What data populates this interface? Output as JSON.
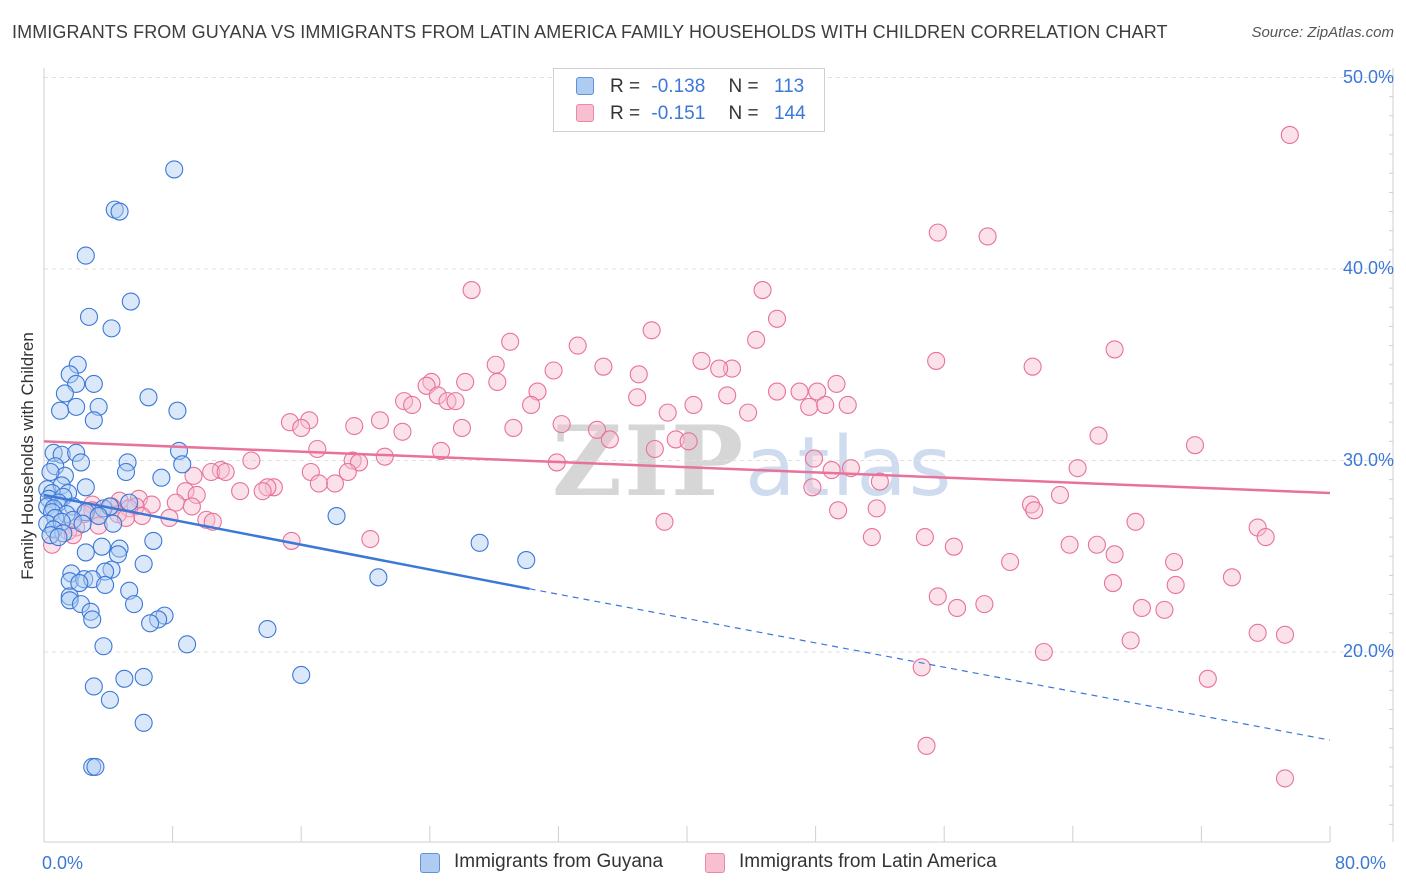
{
  "title": "IMMIGRANTS FROM GUYANA VS IMMIGRANTS FROM LATIN AMERICA FAMILY HOUSEHOLDS WITH CHILDREN CORRELATION CHART",
  "source": "Source: ZipAtlas.com",
  "watermark": {
    "zip": "ZIP",
    "atlas": "atlas"
  },
  "legend": {
    "series": [
      {
        "r_label": "R =",
        "r_value": "-0.138",
        "n_label": "N =",
        "n_value": "113",
        "swatch_fill": "#aecbf2",
        "swatch_stroke": "#5e93d8"
      },
      {
        "r_label": "R =",
        "r_value": "-0.151",
        "n_label": "N =",
        "n_value": "144",
        "swatch_fill": "#f7bfd0",
        "swatch_stroke": "#e889a8"
      }
    ]
  },
  "bottom_legend": [
    "Immigrants from Guyana",
    "Immigrants from Latin America"
  ],
  "x_axis": {
    "min_label": "0.0%",
    "max_label": "80.0%"
  },
  "y_axis": {
    "title": "Family Households with Children",
    "ticks": [
      "50.0%",
      "40.0%",
      "30.0%",
      "20.0%"
    ]
  },
  "colors": {
    "blue": "#3b78d8",
    "blue_fill": "#aecbf2",
    "pink": "#e8729a",
    "pink_fill": "#f7bfd0",
    "grid": "#e1e1e1",
    "axis": "#cfcfcf"
  },
  "chart_data": {
    "type": "scatter",
    "title": "IMMIGRANTS FROM GUYANA VS IMMIGRANTS FROM LATIN AMERICA FAMILY HOUSEHOLDS WITH CHILDREN CORRELATION CHART",
    "xlabel": "",
    "ylabel": "Family Households with Children",
    "xlim": [
      0,
      80
    ],
    "ylim": [
      10,
      52
    ],
    "yticks": [
      20,
      30,
      40,
      50
    ],
    "grid": true,
    "series": [
      {
        "name": "Immigrants from Guyana",
        "color": "#3b78d8",
        "r": -0.138,
        "n": 113,
        "trend": {
          "x0": 0,
          "y0": 28.2,
          "x1": 30.2,
          "y1": 23.3,
          "dash_to_x": 80,
          "dash_to_y": 15.4
        },
        "points": [
          [
            8.1,
            45.2
          ],
          [
            4.4,
            43.1
          ],
          [
            4.7,
            43.0
          ],
          [
            2.6,
            40.7
          ],
          [
            5.4,
            38.3
          ],
          [
            2.8,
            37.5
          ],
          [
            4.2,
            36.9
          ],
          [
            2.1,
            35.0
          ],
          [
            1.6,
            34.5
          ],
          [
            3.1,
            34.0
          ],
          [
            2.0,
            34.0
          ],
          [
            1.3,
            33.5
          ],
          [
            6.5,
            33.3
          ],
          [
            2.0,
            32.8
          ],
          [
            3.4,
            32.8
          ],
          [
            1.0,
            32.6
          ],
          [
            8.3,
            32.6
          ],
          [
            3.1,
            32.1
          ],
          [
            0.6,
            30.4
          ],
          [
            1.1,
            30.3
          ],
          [
            2.0,
            30.4
          ],
          [
            8.4,
            30.5
          ],
          [
            5.2,
            29.9
          ],
          [
            2.3,
            29.9
          ],
          [
            0.7,
            29.7
          ],
          [
            8.6,
            29.8
          ],
          [
            1.3,
            29.2
          ],
          [
            0.4,
            29.4
          ],
          [
            5.1,
            29.4
          ],
          [
            7.3,
            29.1
          ],
          [
            0.2,
            28.5
          ],
          [
            1.1,
            28.7
          ],
          [
            2.6,
            28.6
          ],
          [
            0.5,
            28.3
          ],
          [
            1.5,
            28.3
          ],
          [
            0.3,
            28.0
          ],
          [
            1.2,
            28.1
          ],
          [
            0.9,
            27.8
          ],
          [
            5.3,
            27.8
          ],
          [
            0.2,
            27.6
          ],
          [
            0.6,
            27.5
          ],
          [
            1.8,
            27.6
          ],
          [
            3.7,
            27.5
          ],
          [
            4.1,
            27.6
          ],
          [
            0.5,
            27.3
          ],
          [
            1.4,
            27.2
          ],
          [
            2.6,
            27.3
          ],
          [
            3.4,
            27.1
          ],
          [
            18.2,
            27.1
          ],
          [
            0.7,
            27.0
          ],
          [
            1.8,
            26.9
          ],
          [
            0.2,
            26.7
          ],
          [
            1.1,
            26.8
          ],
          [
            2.4,
            26.7
          ],
          [
            4.3,
            26.7
          ],
          [
            0.6,
            26.4
          ],
          [
            1.2,
            26.2
          ],
          [
            0.4,
            26.1
          ],
          [
            0.9,
            26.0
          ],
          [
            6.8,
            25.8
          ],
          [
            27.1,
            25.7
          ],
          [
            3.6,
            25.5
          ],
          [
            4.7,
            25.4
          ],
          [
            2.6,
            25.2
          ],
          [
            4.6,
            25.1
          ],
          [
            6.2,
            24.6
          ],
          [
            30.0,
            24.8
          ],
          [
            4.2,
            24.3
          ],
          [
            1.7,
            24.1
          ],
          [
            3.8,
            24.2
          ],
          [
            20.8,
            23.9
          ],
          [
            1.6,
            23.7
          ],
          [
            2.5,
            23.8
          ],
          [
            3.0,
            23.8
          ],
          [
            2.2,
            23.6
          ],
          [
            3.8,
            23.5
          ],
          [
            5.3,
            23.2
          ],
          [
            1.6,
            22.9
          ],
          [
            1.6,
            22.7
          ],
          [
            2.3,
            22.5
          ],
          [
            5.6,
            22.5
          ],
          [
            2.9,
            22.1
          ],
          [
            7.5,
            21.9
          ],
          [
            7.1,
            21.7
          ],
          [
            3.0,
            21.7
          ],
          [
            6.6,
            21.5
          ],
          [
            13.9,
            21.2
          ],
          [
            3.7,
            20.3
          ],
          [
            8.9,
            20.4
          ],
          [
            16.0,
            18.8
          ],
          [
            5.0,
            18.6
          ],
          [
            6.2,
            18.7
          ],
          [
            3.1,
            18.2
          ],
          [
            4.1,
            17.5
          ],
          [
            6.2,
            16.3
          ],
          [
            3.0,
            14.0
          ],
          [
            3.2,
            14.0
          ]
        ]
      },
      {
        "name": "Immigrants from Latin America",
        "color": "#e8729a",
        "r": -0.151,
        "n": 144,
        "trend": {
          "x0": 0,
          "y0": 31.0,
          "x1": 80,
          "y1": 28.3
        },
        "points": [
          [
            77.5,
            47.0
          ],
          [
            55.6,
            41.9
          ],
          [
            58.7,
            41.7
          ],
          [
            26.6,
            38.9
          ],
          [
            44.7,
            38.9
          ],
          [
            45.6,
            37.4
          ],
          [
            37.8,
            36.8
          ],
          [
            44.3,
            36.3
          ],
          [
            29.0,
            36.2
          ],
          [
            33.2,
            36.0
          ],
          [
            66.6,
            35.8
          ],
          [
            55.5,
            35.2
          ],
          [
            40.9,
            35.2
          ],
          [
            28.1,
            35.0
          ],
          [
            61.5,
            34.9
          ],
          [
            34.8,
            34.9
          ],
          [
            42.8,
            34.8
          ],
          [
            42.0,
            34.8
          ],
          [
            31.7,
            34.7
          ],
          [
            37.0,
            34.5
          ],
          [
            26.2,
            34.1
          ],
          [
            24.1,
            34.1
          ],
          [
            28.2,
            34.1
          ],
          [
            49.3,
            34.0
          ],
          [
            23.8,
            33.9
          ],
          [
            30.7,
            33.6
          ],
          [
            48.1,
            33.6
          ],
          [
            45.6,
            33.6
          ],
          [
            47.0,
            33.6
          ],
          [
            24.5,
            33.4
          ],
          [
            36.9,
            33.3
          ],
          [
            42.5,
            33.4
          ],
          [
            22.4,
            33.1
          ],
          [
            25.1,
            33.1
          ],
          [
            25.6,
            33.1
          ],
          [
            22.9,
            32.9
          ],
          [
            40.4,
            32.9
          ],
          [
            30.3,
            32.9
          ],
          [
            47.6,
            32.8
          ],
          [
            50.0,
            32.9
          ],
          [
            48.6,
            32.9
          ],
          [
            43.8,
            32.5
          ],
          [
            38.8,
            32.5
          ],
          [
            16.5,
            32.1
          ],
          [
            20.9,
            32.1
          ],
          [
            15.3,
            32.0
          ],
          [
            32.2,
            31.9
          ],
          [
            19.3,
            31.8
          ],
          [
            26.0,
            31.7
          ],
          [
            29.2,
            31.7
          ],
          [
            16.0,
            31.7
          ],
          [
            34.4,
            31.6
          ],
          [
            22.3,
            31.5
          ],
          [
            65.6,
            31.3
          ],
          [
            35.2,
            31.1
          ],
          [
            39.3,
            31.1
          ],
          [
            40.1,
            31.0
          ],
          [
            17.0,
            30.6
          ],
          [
            38.0,
            30.6
          ],
          [
            24.7,
            30.5
          ],
          [
            71.6,
            30.8
          ],
          [
            47.9,
            30.1
          ],
          [
            21.2,
            30.2
          ],
          [
            12.9,
            30.0
          ],
          [
            19.2,
            30.0
          ],
          [
            31.9,
            29.9
          ],
          [
            19.6,
            29.9
          ],
          [
            50.2,
            29.6
          ],
          [
            49.0,
            29.5
          ],
          [
            64.3,
            29.6
          ],
          [
            11.0,
            29.5
          ],
          [
            18.9,
            29.4
          ],
          [
            10.4,
            29.4
          ],
          [
            16.6,
            29.4
          ],
          [
            11.3,
            29.4
          ],
          [
            9.3,
            29.2
          ],
          [
            52.0,
            28.9
          ],
          [
            18.1,
            28.8
          ],
          [
            17.1,
            28.8
          ],
          [
            14.3,
            28.6
          ],
          [
            47.8,
            28.6
          ],
          [
            13.9,
            28.6
          ],
          [
            13.6,
            28.4
          ],
          [
            12.2,
            28.4
          ],
          [
            8.8,
            28.4
          ],
          [
            9.5,
            28.2
          ],
          [
            63.2,
            28.2
          ],
          [
            5.9,
            28.0
          ],
          [
            4.7,
            27.9
          ],
          [
            3.0,
            27.7
          ],
          [
            8.2,
            27.8
          ],
          [
            6.7,
            27.7
          ],
          [
            4.2,
            27.6
          ],
          [
            5.7,
            27.6
          ],
          [
            9.2,
            27.6
          ],
          [
            5.3,
            27.5
          ],
          [
            3.0,
            27.4
          ],
          [
            61.4,
            27.7
          ],
          [
            51.8,
            27.5
          ],
          [
            49.4,
            27.4
          ],
          [
            61.6,
            27.4
          ],
          [
            4.6,
            27.2
          ],
          [
            3.4,
            27.1
          ],
          [
            2.5,
            27.2
          ],
          [
            6.1,
            27.1
          ],
          [
            7.8,
            27.0
          ],
          [
            5.1,
            27.0
          ],
          [
            10.1,
            26.9
          ],
          [
            38.6,
            26.8
          ],
          [
            67.9,
            26.8
          ],
          [
            10.5,
            26.8
          ],
          [
            3.4,
            26.6
          ],
          [
            2.0,
            26.5
          ],
          [
            1.5,
            26.3
          ],
          [
            75.5,
            26.5
          ],
          [
            1.8,
            26.1
          ],
          [
            54.8,
            26.0
          ],
          [
            51.5,
            26.0
          ],
          [
            20.3,
            25.9
          ],
          [
            15.4,
            25.8
          ],
          [
            56.6,
            25.5
          ],
          [
            63.8,
            25.6
          ],
          [
            76.0,
            26.0
          ],
          [
            65.5,
            25.6
          ],
          [
            0.5,
            25.6
          ],
          [
            66.6,
            25.1
          ],
          [
            60.1,
            24.7
          ],
          [
            70.3,
            24.7
          ],
          [
            73.9,
            23.9
          ],
          [
            66.5,
            23.6
          ],
          [
            70.4,
            23.5
          ],
          [
            55.6,
            22.9
          ],
          [
            56.8,
            22.3
          ],
          [
            58.5,
            22.5
          ],
          [
            69.7,
            22.2
          ],
          [
            68.3,
            22.3
          ],
          [
            75.5,
            21.0
          ],
          [
            77.2,
            20.9
          ],
          [
            67.6,
            20.6
          ],
          [
            62.2,
            20.0
          ],
          [
            54.6,
            19.2
          ],
          [
            72.4,
            18.6
          ],
          [
            54.9,
            15.1
          ],
          [
            77.2,
            13.4
          ]
        ]
      }
    ]
  }
}
